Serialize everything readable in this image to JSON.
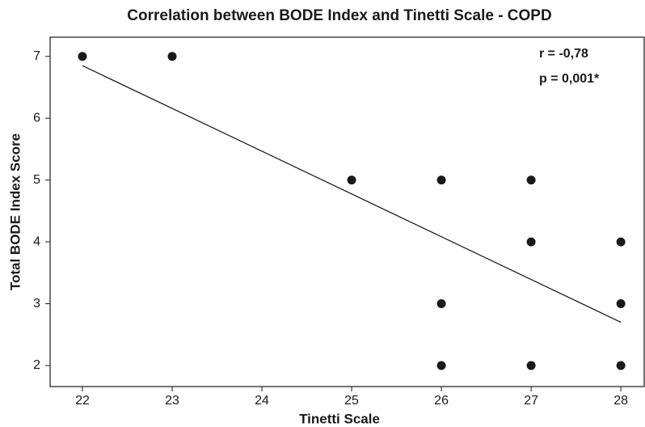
{
  "chart_data": {
    "type": "scatter",
    "title": "Correlation between BODE Index and Tinetti Scale - COPD",
    "xlabel": "Tinetti Scale",
    "ylabel": "Total BODE Index Score",
    "x": [
      22,
      23,
      25,
      26,
      26,
      26,
      27,
      27,
      27,
      28,
      28,
      28
    ],
    "values": [
      7,
      7,
      5,
      5,
      3,
      2,
      5,
      4,
      2,
      4,
      3,
      2
    ],
    "color": "#1a1a1a",
    "trendline": {
      "x": [
        22,
        28
      ],
      "values": [
        6.85,
        2.7
      ],
      "color": "#1a1a1a"
    },
    "annotations": [
      "r = -0,78",
      "p = 0,001*"
    ],
    "xlim": [
      21.64,
      28.26
    ],
    "ylim": [
      1.66,
      7.31
    ],
    "xticks": [
      22,
      23,
      24,
      25,
      26,
      27,
      28
    ],
    "yticks": [
      2,
      3,
      4,
      5,
      6,
      7
    ]
  }
}
